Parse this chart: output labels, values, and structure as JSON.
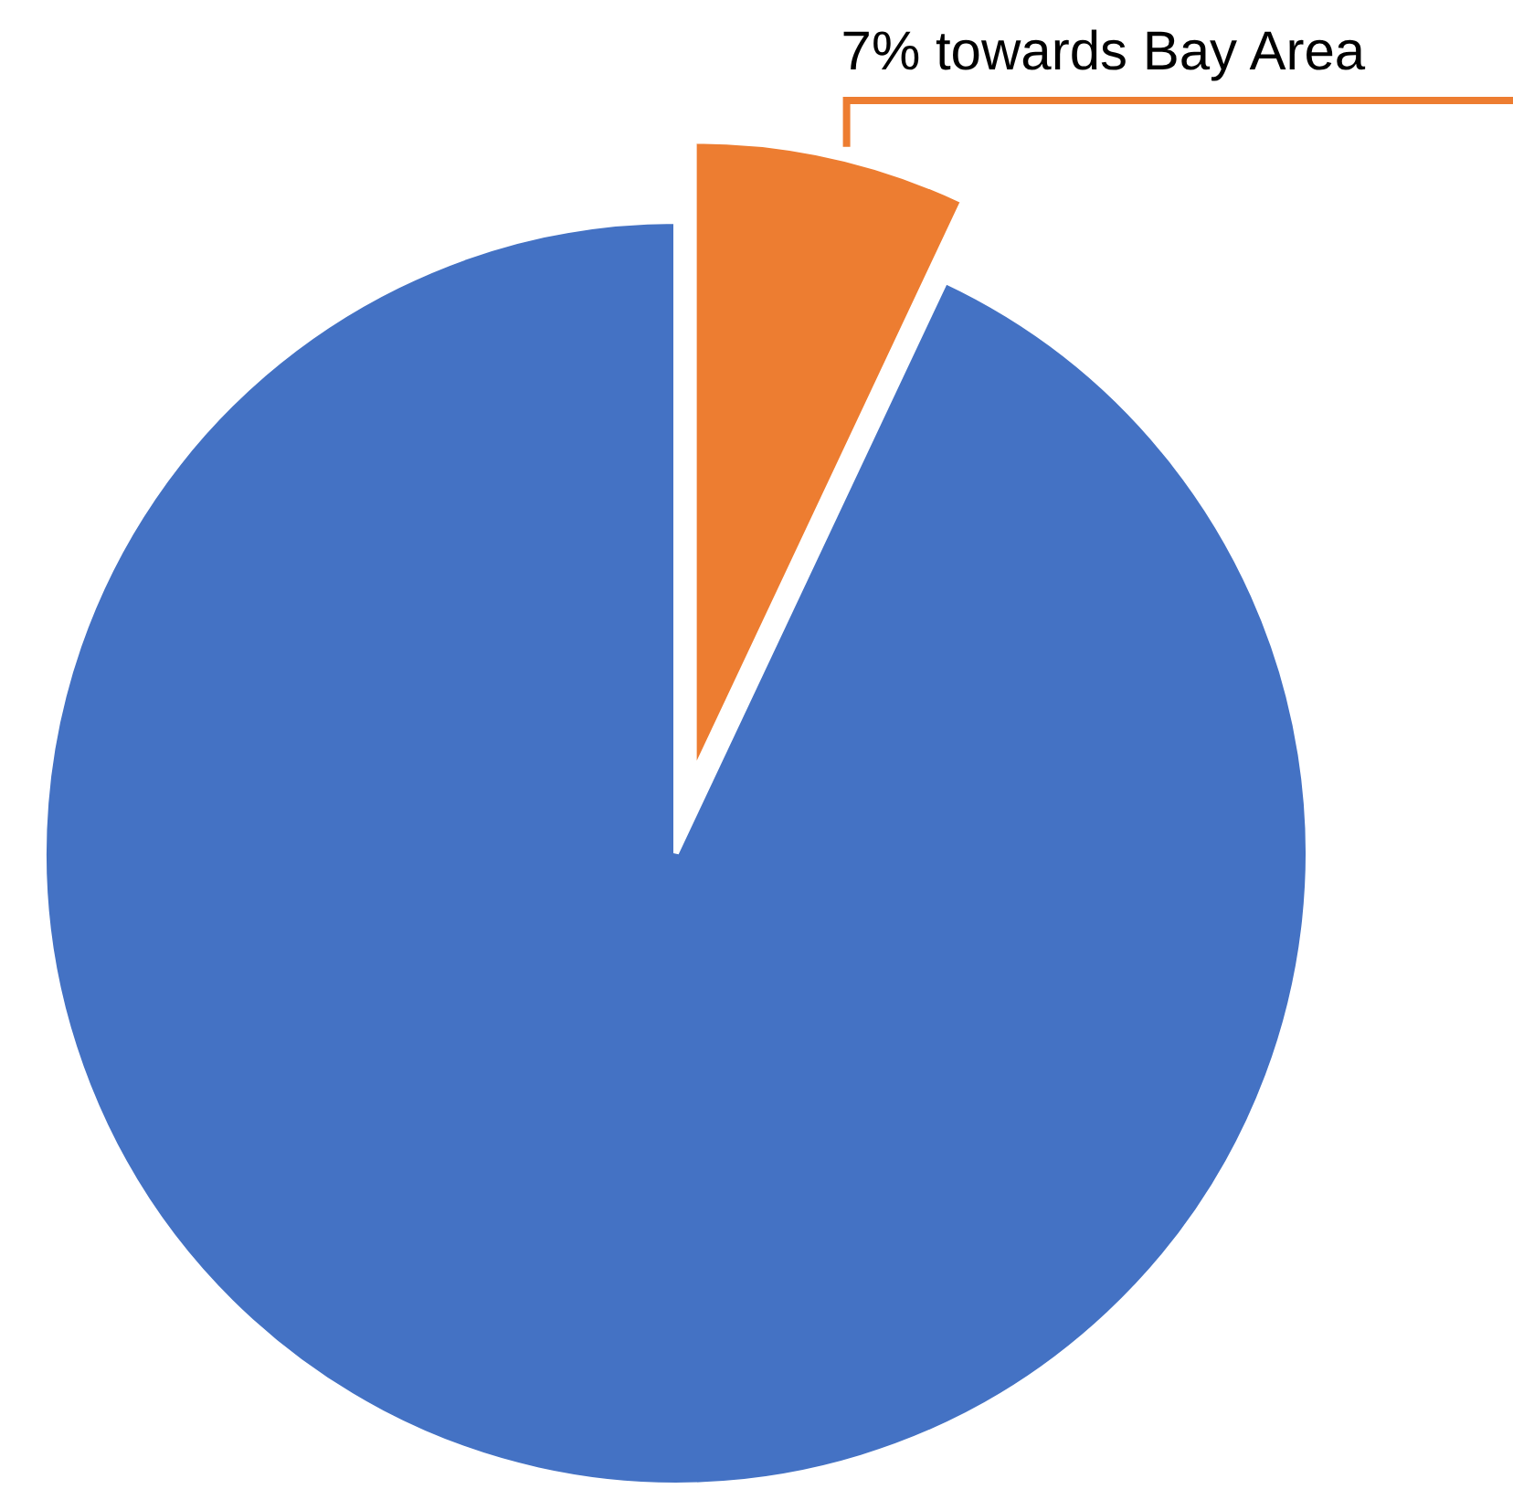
{
  "chart_data": {
    "type": "pie",
    "categories": [
      null,
      null
    ],
    "values": [
      7,
      93
    ],
    "colors": [
      "#ed7d31",
      "#4472c4"
    ],
    "value_labels": [
      "7% towards Bay Area",
      null
    ]
  }
}
